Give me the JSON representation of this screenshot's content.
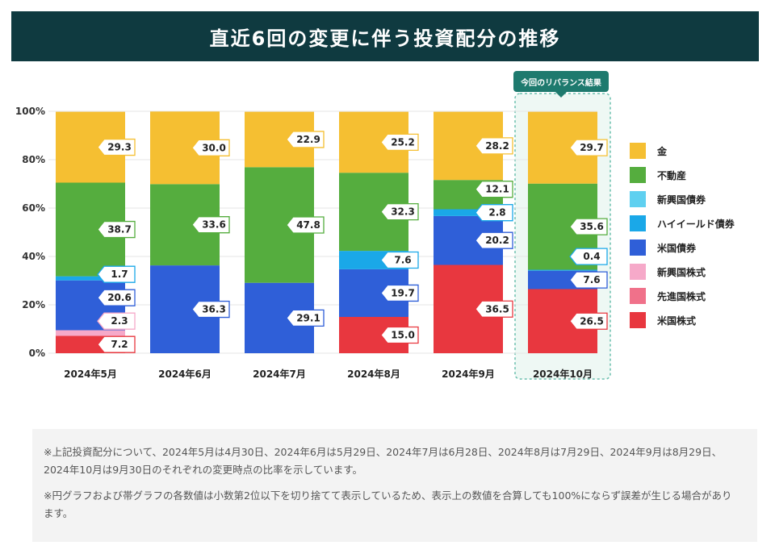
{
  "title": "直近6回の変更に伴う投資配分の推移",
  "badge": "今回のリバランス結果",
  "colors": {
    "title_bg": "#0f3a40",
    "highlight_border": "#6bbfae",
    "highlight_bg": "#eef8f4"
  },
  "chart_data": {
    "type": "bar",
    "stacked": true,
    "title": "直近6回の変更に伴う投資配分の推移",
    "categories": [
      "2024年5月",
      "2024年6月",
      "2024年7月",
      "2024年8月",
      "2024年9月",
      "2024年10月"
    ],
    "yticks": [
      "0%",
      "20%",
      "40%",
      "60%",
      "80%",
      "100%"
    ],
    "ylim": [
      0,
      100
    ],
    "series": [
      {
        "name": "米国株式",
        "color": "#e8373f",
        "values": [
          7.2,
          0,
          0,
          15.0,
          36.5,
          26.5
        ]
      },
      {
        "name": "先進国株式",
        "color": "#f0718a",
        "values": [
          0,
          0,
          0,
          0,
          0,
          0
        ]
      },
      {
        "name": "新興国株式",
        "color": "#f6a9c9",
        "values": [
          2.3,
          0,
          0,
          0,
          0,
          0
        ]
      },
      {
        "name": "米国債券",
        "color": "#2f5fd8",
        "values": [
          20.6,
          36.3,
          29.1,
          19.7,
          20.2,
          7.6
        ]
      },
      {
        "name": "ハイイールド債券",
        "color": "#1aa8e8",
        "values": [
          1.7,
          0,
          0,
          7.6,
          2.8,
          0.4
        ]
      },
      {
        "name": "新興国債券",
        "color": "#5fd0f0",
        "values": [
          0,
          0,
          0,
          0,
          0,
          0
        ]
      },
      {
        "name": "不動産",
        "color": "#55ad3e",
        "values": [
          38.7,
          33.6,
          47.8,
          32.3,
          12.1,
          35.6
        ]
      },
      {
        "name": "金",
        "color": "#f5bf32",
        "values": [
          29.3,
          30.0,
          22.9,
          25.2,
          28.2,
          29.7
        ]
      }
    ],
    "legend": [
      "金",
      "不動産",
      "新興国債券",
      "ハイイールド債券",
      "米国債券",
      "新興国株式",
      "先進国株式",
      "米国株式"
    ],
    "highlight_category": "2024年10月"
  },
  "notes": [
    "※上記投資配分について、2024年5月は4月30日、2024年6月は5月29日、2024年7月は6月28日、2024年8月は7月29日、2024年9月は8月29日、2024年10月は9月30日のそれぞれの変更時点の比率を示しています。",
    "※円グラフおよび帯グラフの各数値は小数第2位以下を切り捨てて表示しているため、表示上の数値を合算しても100%にならず誤差が生じる場合があります。"
  ]
}
